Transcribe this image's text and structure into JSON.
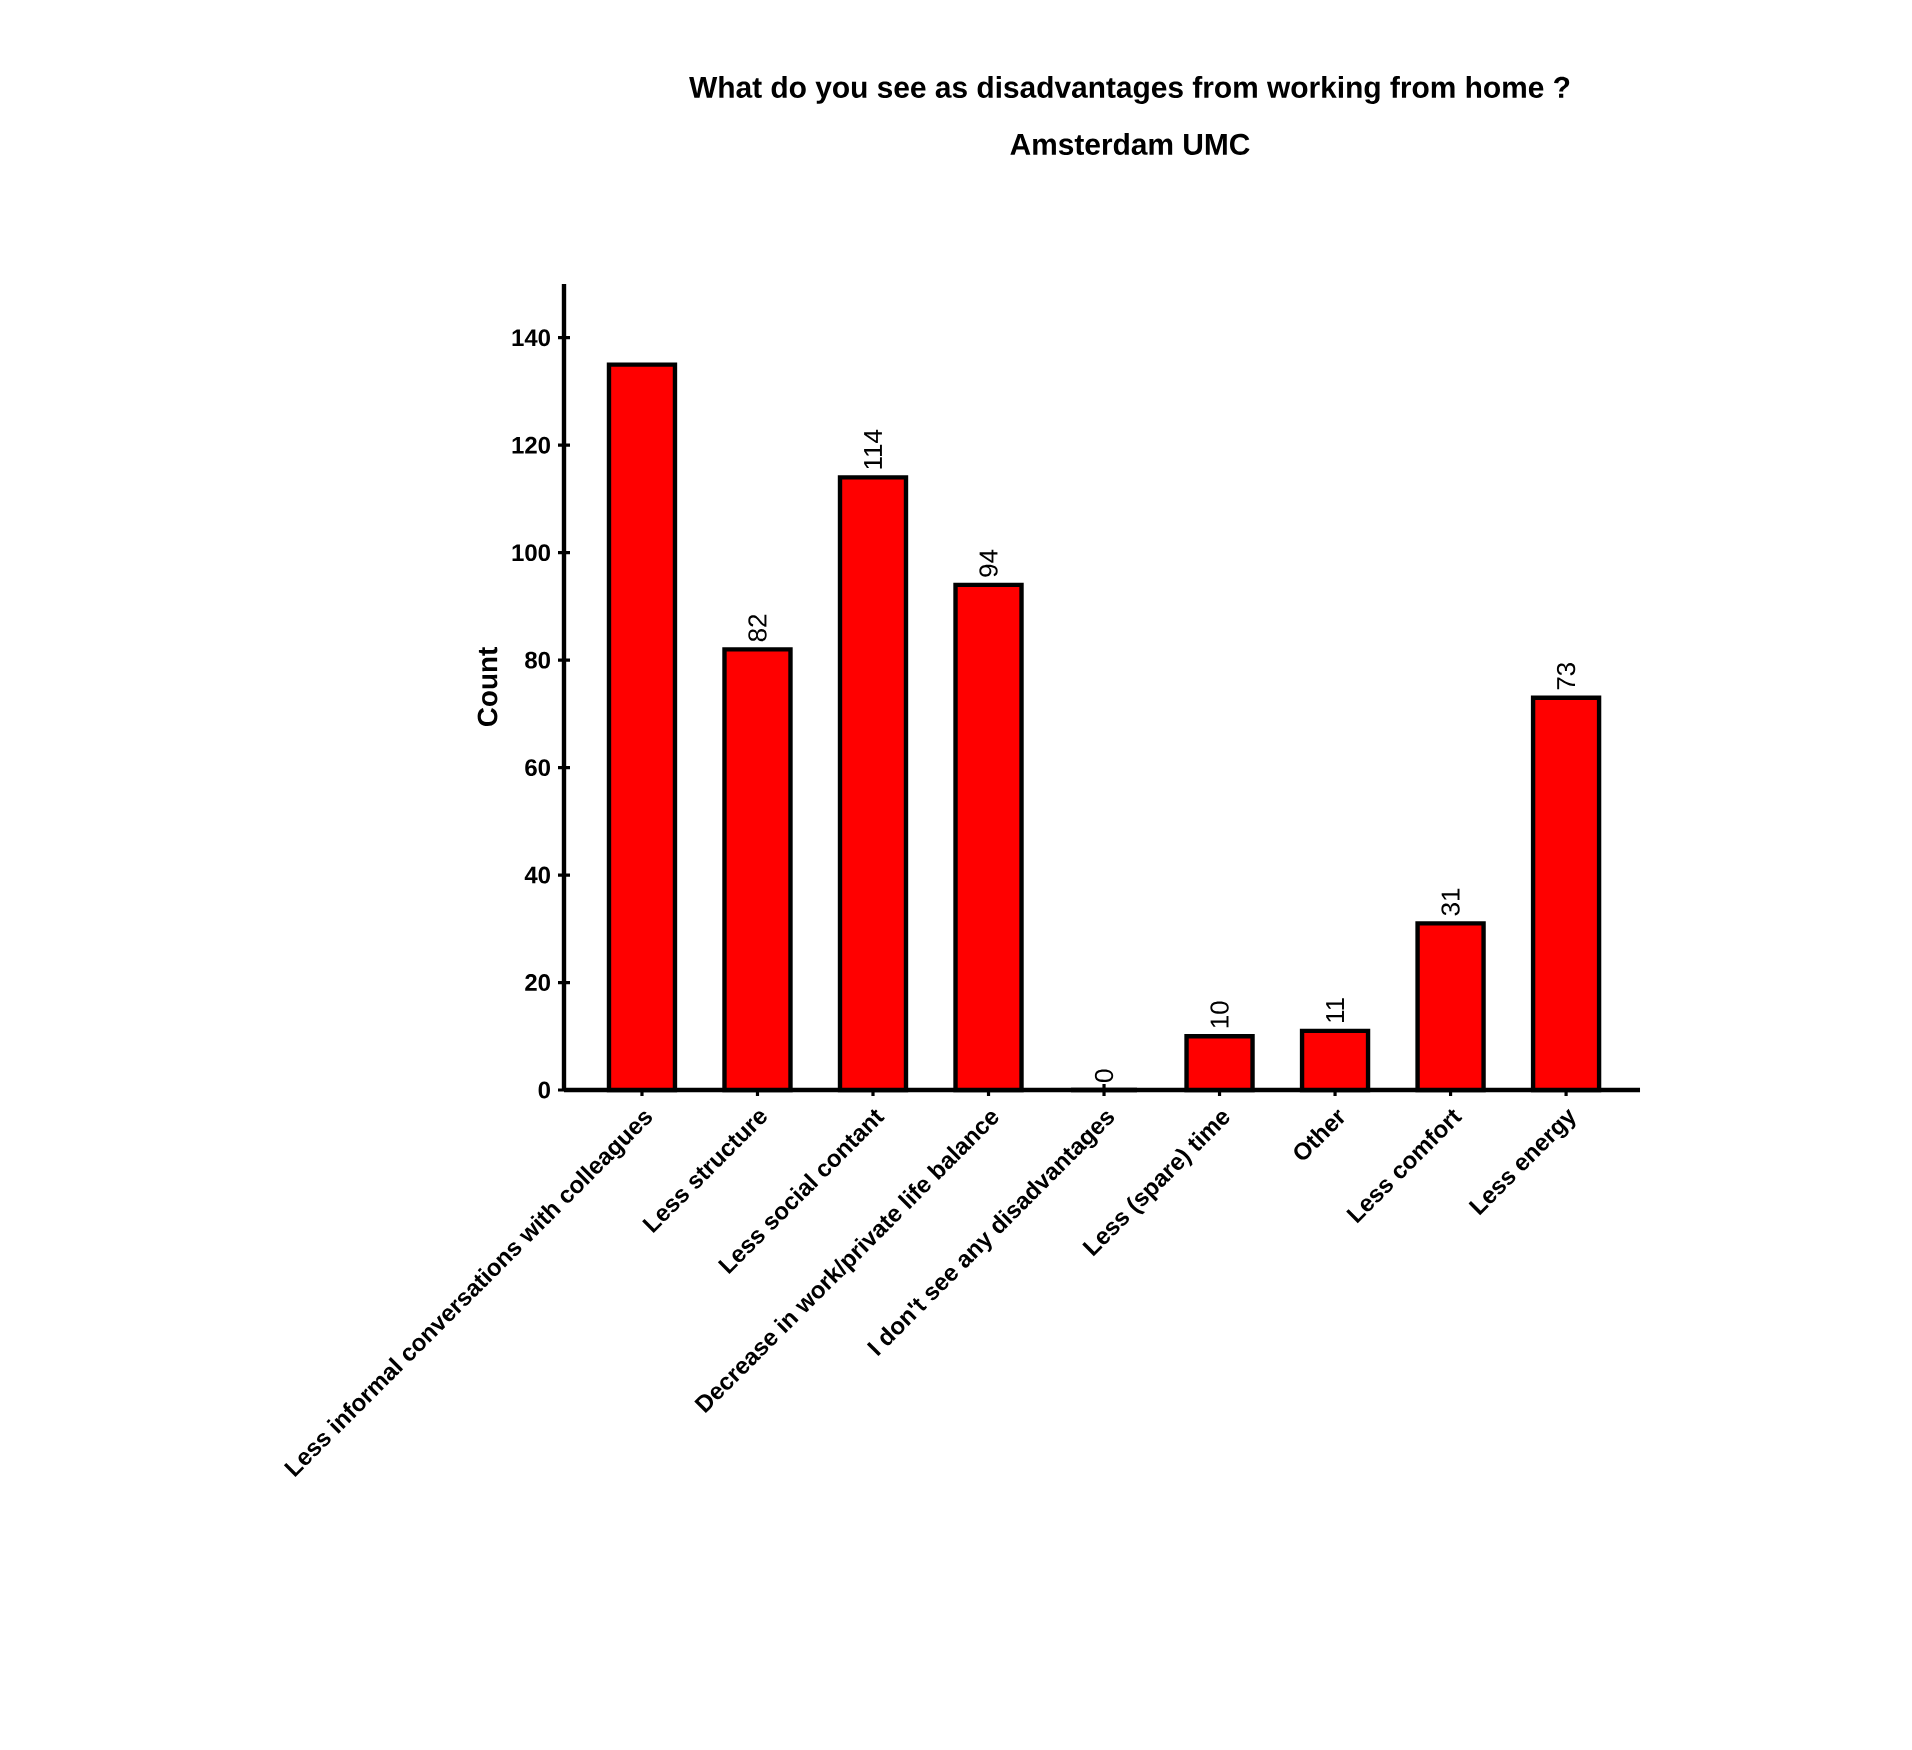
{
  "chart_data": {
    "type": "bar",
    "title": "What do you see as disadvantages from working from home ?",
    "subtitle": "Amsterdam  UMC",
    "ylabel": "Count",
    "categories": [
      "Less informal conversations with colleagues",
      "Less structure",
      "Less social contant",
      "Decrease in work/private life balance",
      "I don't see any disadvantages",
      "Less (spare) time",
      "Other",
      "Less comfort",
      "Less energy"
    ],
    "values": [
      135,
      82,
      114,
      94,
      0,
      10,
      11,
      31,
      73
    ],
    "value_labels": [
      null,
      "82",
      "114",
      "94",
      "0",
      "10",
      "11",
      "31",
      "73"
    ],
    "color": "#ff0000",
    "ylim": [
      0,
      150
    ],
    "yticks": [
      0,
      20,
      40,
      60,
      80,
      100,
      120,
      140
    ]
  }
}
